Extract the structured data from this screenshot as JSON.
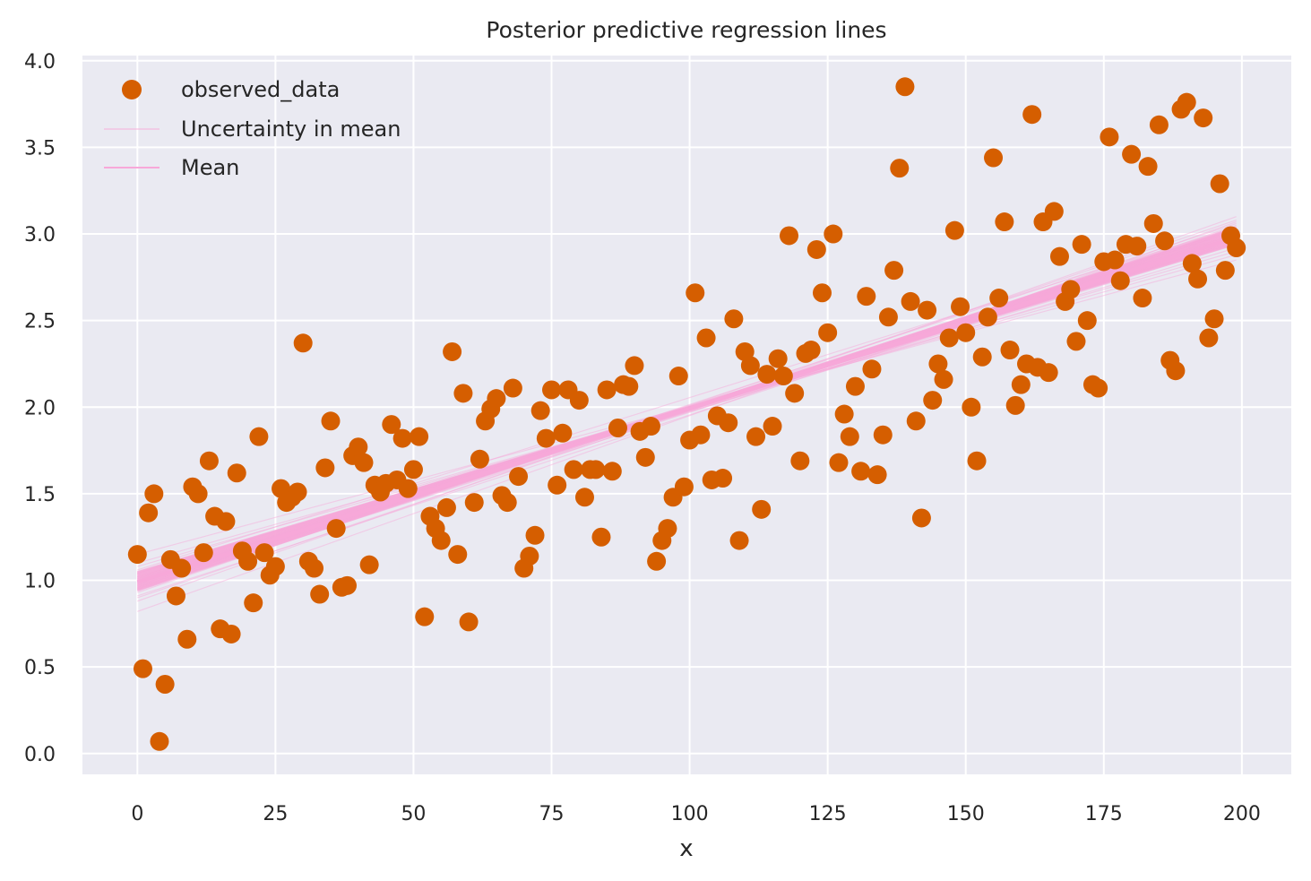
{
  "chart_data": {
    "type": "scatter",
    "title": "Posterior predictive regression lines",
    "xlabel": "x",
    "ylabel": "",
    "xlim": [
      -9.95,
      208.95
    ],
    "ylim": [
      -0.12,
      4.03
    ],
    "xticks": [
      0,
      25,
      50,
      75,
      100,
      125,
      150,
      175,
      200
    ],
    "yticks": [
      0.0,
      0.5,
      1.0,
      1.5,
      2.0,
      2.5,
      3.0,
      3.5,
      4.0
    ],
    "xtick_labels": [
      "0",
      "25",
      "50",
      "75",
      "100",
      "125",
      "150",
      "175",
      "200"
    ],
    "ytick_labels": [
      "0.0",
      "0.5",
      "1.0",
      "1.5",
      "2.0",
      "2.5",
      "3.0",
      "3.5",
      "4.0"
    ],
    "grid": true,
    "legend_position": "top-left",
    "legend": [
      "observed_data",
      "Uncertainty in mean",
      "Mean"
    ],
    "colors": {
      "observed": "#d55e00",
      "uncertainty": "#f7a8d9",
      "mean": "#f7a8d9",
      "background": "#eaeaf2",
      "grid": "#ffffff"
    },
    "mean_line": {
      "intercept": 0.99,
      "slope": 0.01
    },
    "uncertainty_lines": [
      [
        0.9,
        3.05
      ],
      [
        0.95,
        2.98
      ],
      [
        1.0,
        3.0
      ],
      [
        1.05,
        2.95
      ],
      [
        0.93,
        3.08
      ],
      [
        1.02,
        2.92
      ],
      [
        0.97,
        3.03
      ],
      [
        1.08,
        2.9
      ],
      [
        0.88,
        3.1
      ],
      [
        1.1,
        2.88
      ],
      [
        0.99,
        2.99
      ],
      [
        0.94,
        3.02
      ],
      [
        1.04,
        2.97
      ],
      [
        0.82,
        3.07
      ],
      [
        1.15,
        2.85
      ],
      [
        0.96,
        3.06
      ],
      [
        1.01,
        2.94
      ],
      [
        0.91,
        2.99
      ],
      [
        1.06,
        3.04
      ],
      [
        0.98,
        2.96
      ]
    ],
    "series": [
      {
        "name": "observed_data",
        "x": [
          0,
          1,
          2,
          3,
          4,
          5,
          6,
          7,
          8,
          9,
          10,
          11,
          12,
          13,
          14,
          15,
          16,
          17,
          18,
          19,
          20,
          21,
          22,
          23,
          24,
          25,
          26,
          27,
          28,
          29,
          30,
          31,
          32,
          33,
          34,
          35,
          36,
          37,
          38,
          39,
          40,
          41,
          42,
          43,
          44,
          45,
          46,
          47,
          48,
          49,
          50,
          51,
          52,
          53,
          54,
          55,
          56,
          57,
          58,
          59,
          60,
          61,
          62,
          63,
          64,
          65,
          66,
          67,
          68,
          69,
          70,
          71,
          72,
          73,
          74,
          75,
          76,
          77,
          78,
          79,
          80,
          81,
          82,
          83,
          84,
          85,
          86,
          87,
          88,
          89,
          90,
          91,
          92,
          93,
          94,
          95,
          96,
          97,
          98,
          99,
          100,
          101,
          102,
          103,
          104,
          105,
          106,
          107,
          108,
          109,
          110,
          111,
          112,
          113,
          114,
          115,
          116,
          117,
          118,
          119,
          120,
          121,
          122,
          123,
          124,
          125,
          126,
          127,
          128,
          129,
          130,
          131,
          132,
          133,
          134,
          135,
          136,
          137,
          138,
          139,
          140,
          141,
          142,
          143,
          144,
          145,
          146,
          147,
          148,
          149,
          150,
          151,
          152,
          153,
          154,
          155,
          156,
          157,
          158,
          159,
          160,
          161,
          162,
          163,
          164,
          165,
          166,
          167,
          168,
          169,
          170,
          171,
          172,
          173,
          174,
          175,
          176,
          177,
          178,
          179,
          180,
          181,
          182,
          183,
          184,
          185,
          186,
          187,
          188,
          189,
          190,
          191,
          192,
          193,
          194,
          195,
          196,
          197,
          198,
          199
        ],
        "y": [
          1.15,
          0.49,
          1.39,
          1.5,
          0.07,
          0.4,
          1.12,
          0.91,
          1.07,
          0.66,
          1.54,
          1.5,
          1.16,
          1.69,
          1.37,
          0.72,
          1.34,
          0.69,
          1.62,
          1.17,
          1.11,
          0.87,
          1.83,
          1.16,
          1.03,
          1.08,
          1.53,
          1.45,
          1.48,
          1.51,
          2.37,
          1.11,
          1.07,
          0.92,
          1.65,
          1.92,
          1.3,
          0.96,
          0.97,
          1.72,
          1.77,
          1.68,
          1.09,
          1.55,
          1.51,
          1.56,
          1.9,
          1.58,
          1.82,
          1.53,
          1.64,
          1.83,
          0.79,
          1.37,
          1.3,
          1.23,
          1.42,
          2.32,
          1.15,
          2.08,
          0.76,
          1.45,
          1.7,
          1.92,
          1.99,
          2.05,
          1.49,
          1.45,
          2.11,
          1.6,
          1.07,
          1.14,
          1.26,
          1.98,
          1.82,
          2.1,
          1.55,
          1.85,
          2.1,
          1.64,
          2.04,
          1.48,
          1.64,
          1.64,
          1.25,
          2.1,
          1.63,
          1.88,
          2.13,
          2.12,
          2.24,
          1.86,
          1.71,
          1.89,
          1.11,
          1.23,
          1.3,
          1.48,
          2.18,
          1.54,
          1.81,
          2.66,
          1.84,
          2.4,
          1.58,
          1.95,
          1.59,
          1.91,
          2.51,
          1.23,
          2.32,
          2.24,
          1.83,
          1.41,
          2.19,
          1.89,
          2.28,
          2.18,
          2.99,
          2.08,
          1.69,
          2.31,
          2.33,
          2.91,
          2.66,
          2.43,
          3.0,
          1.68,
          1.96,
          1.83,
          2.12,
          1.63,
          2.64,
          2.22,
          1.61,
          1.84,
          2.52,
          2.79,
          3.38,
          3.85,
          2.61,
          1.92,
          1.36,
          2.56,
          2.04,
          2.25,
          2.16,
          2.4,
          3.02,
          2.58,
          2.43,
          2.0,
          1.69,
          2.29,
          2.52,
          3.44,
          2.63,
          3.07,
          2.33,
          2.01,
          2.13,
          2.25,
          3.69,
          2.23,
          3.07,
          2.2,
          3.13,
          2.87,
          2.61,
          2.68,
          2.38,
          2.94,
          2.5,
          2.13,
          2.11,
          2.84,
          3.56,
          2.85,
          2.73,
          2.94,
          3.46,
          2.93,
          2.63,
          3.39,
          3.06,
          3.63,
          2.96,
          2.27,
          2.21,
          3.72,
          3.76,
          2.83,
          2.74,
          3.67,
          2.4,
          2.51,
          3.29,
          2.79,
          2.99,
          2.92
        ]
      }
    ]
  }
}
